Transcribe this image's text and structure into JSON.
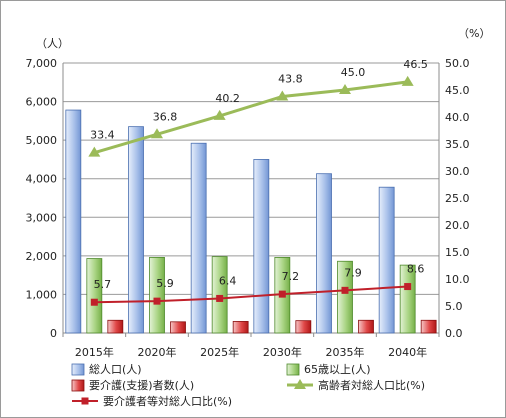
{
  "chart_data": {
    "type": "bar",
    "categories": [
      "2015年",
      "2020年",
      "2025年",
      "2030年",
      "2035年",
      "2040年"
    ],
    "left_axis": {
      "unit": "（人）",
      "min": 0,
      "max": 7000,
      "step": 1000,
      "ticks": [
        "0",
        "1,000",
        "2,000",
        "3,000",
        "4,000",
        "5,000",
        "6,000",
        "7,000"
      ]
    },
    "right_axis": {
      "unit": "（%）",
      "min": 0,
      "max": 50,
      "step": 5,
      "ticks": [
        "0.0",
        "5.0",
        "10.0",
        "15.0",
        "20.0",
        "25.0",
        "30.0",
        "35.0",
        "40.0",
        "45.0",
        "50.0"
      ]
    },
    "series": [
      {
        "name": "総人口(人)",
        "type": "bar",
        "axis": "left",
        "color": "#7fa0d8",
        "values": [
          5780,
          5350,
          4920,
          4500,
          4130,
          3780
        ]
      },
      {
        "name": "65歳以上(人)",
        "type": "bar",
        "axis": "left",
        "color": "#86bf59",
        "values": [
          1930,
          1960,
          1980,
          1960,
          1860,
          1760
        ]
      },
      {
        "name": "要介護(支援)者数(人)",
        "type": "bar",
        "axis": "left",
        "color": "#d42a2a",
        "values": [
          330,
          290,
          300,
          320,
          330,
          330
        ]
      },
      {
        "name": "高齢者対総人口比(%)",
        "type": "line",
        "axis": "right",
        "color": "#9bbb59",
        "values": [
          33.4,
          36.8,
          40.2,
          43.8,
          45.0,
          46.5
        ],
        "labels": [
          "33.4",
          "36.8",
          "40.2",
          "43.8",
          "45.0",
          "46.5"
        ]
      },
      {
        "name": "要介護者等対総人口比(%)",
        "type": "line",
        "axis": "right",
        "color": "#c0202a",
        "values": [
          5.7,
          5.9,
          6.4,
          7.2,
          7.9,
          8.6
        ],
        "labels": [
          "5.7",
          "5.9",
          "6.4",
          "7.2",
          "7.9",
          "8.6"
        ]
      }
    ],
    "grid": true,
    "legend_position": "bottom"
  }
}
